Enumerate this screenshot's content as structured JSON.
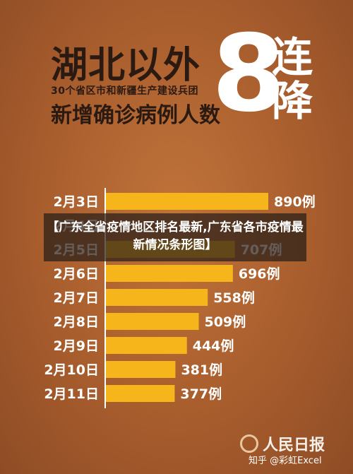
{
  "header": {
    "line1": "湖北以外",
    "line2": "30个省区市和新疆生产建设兵团",
    "line3": "新增确诊病例人数",
    "number": "8",
    "lian": "连",
    "jiang": "降"
  },
  "banner": {
    "text": "【广东全省疫情地区排名最新,广东省各市疫情最新情况条形图】"
  },
  "footer": {
    "logo": "人民日报",
    "watermark": "知乎 @彩虹Excel"
  },
  "colors": {
    "bar": "#f7b51c",
    "background": "#a85d2d"
  },
  "chart_data": {
    "type": "bar",
    "orientation": "horizontal",
    "categories": [
      "2月3日",
      "2月4日",
      "2月5日",
      "2月6日",
      "2月7日",
      "2月8日",
      "2月9日",
      "2月10日",
      "2月11日"
    ],
    "values": [
      890,
      null,
      707,
      696,
      558,
      509,
      444,
      381,
      377
    ],
    "labels": [
      "890例",
      "",
      "707例",
      "696例",
      "558例",
      "509例",
      "444例",
      "381例",
      "377例"
    ],
    "xlim": [
      0,
      890
    ]
  }
}
